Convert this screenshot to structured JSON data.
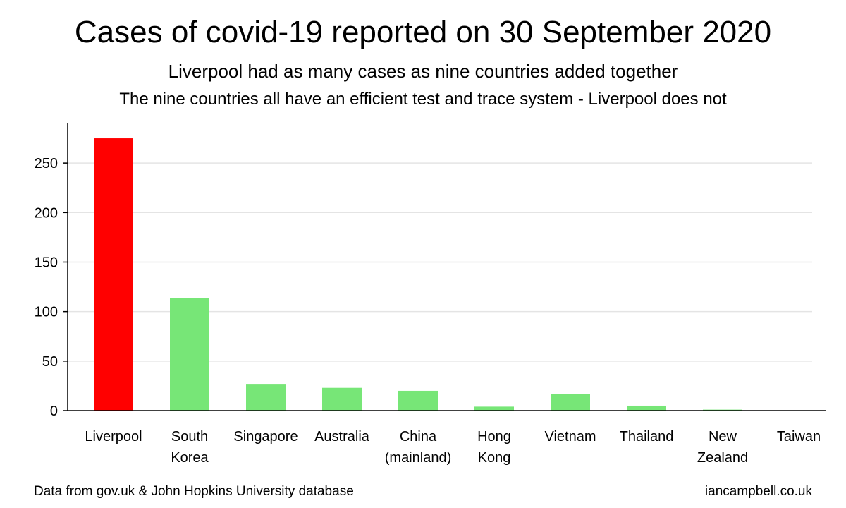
{
  "header": {
    "title": "Cases of covid-19 reported on 30 September 2020",
    "subtitle_1": "Liverpool had as many cases as nine countries added together",
    "subtitle_2": "The nine countries all have an efficient test and trace system - Liverpool does not"
  },
  "footer": {
    "source": "Data from gov.uk & John Hopkins University database",
    "credit": "iancampbell.co.uk"
  },
  "colors": {
    "highlight": "#ff0000",
    "normal": "#77e677",
    "grid": "#e4e4e4",
    "axis": "#000000"
  },
  "chart_data": {
    "type": "bar",
    "categories": [
      [
        "Liverpool"
      ],
      [
        "South",
        "Korea"
      ],
      [
        "Singapore"
      ],
      [
        "Australia"
      ],
      [
        "China",
        "(mainland)"
      ],
      [
        "Hong",
        "Kong"
      ],
      [
        "Vietnam"
      ],
      [
        "Thailand"
      ],
      [
        "New",
        "Zealand"
      ],
      [
        "Taiwan"
      ]
    ],
    "values": [
      275,
      114,
      27,
      23,
      20,
      4,
      17,
      5,
      1,
      0
    ],
    "highlighted_index": 0,
    "ylim": [
      0,
      290
    ],
    "yticks": [
      0,
      50,
      100,
      150,
      200,
      250
    ],
    "grid": true
  }
}
